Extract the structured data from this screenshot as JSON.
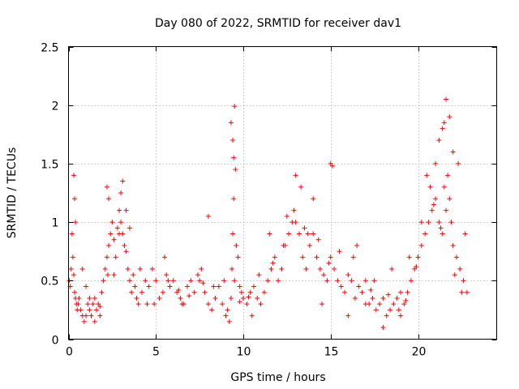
{
  "chart_data": {
    "type": "scatter",
    "title": "Day 080 of 2022, SRMTID for receiver dav1",
    "xlabel": "GPS time / hours",
    "ylabel": "SRMTID / TECUs",
    "xlim": [
      0,
      24.5
    ],
    "ylim": [
      0,
      2.5
    ],
    "xticks": [
      0,
      5,
      10,
      15,
      20
    ],
    "xtick_labels": [
      "0",
      "5",
      "10",
      "15",
      "20"
    ],
    "yticks": [
      0,
      0.5,
      1,
      1.5,
      2,
      2.5
    ],
    "ytick_labels": [
      "0",
      "0.5",
      "1",
      "1.5",
      "2",
      "2.5"
    ],
    "grid": true,
    "marker": "+",
    "colors": {
      "points": "#ff0000",
      "grid": "#a0a0a0",
      "axes": "#000000"
    },
    "series": [
      {
        "name": "SRMTID",
        "x": [
          0.05,
          0.1,
          0.15,
          0.2,
          0.25,
          0.3,
          0.35,
          0.4,
          0.45,
          0.5,
          0.55,
          0.6,
          0.7,
          0.8,
          0.9,
          1.0,
          1.1,
          1.2,
          1.3,
          1.4,
          1.5,
          1.6,
          1.7,
          1.8,
          1.9,
          2.0,
          2.1,
          2.2,
          2.25,
          2.3,
          2.4,
          2.5,
          2.6,
          2.7,
          2.8,
          2.9,
          3.0,
          3.1,
          3.2,
          3.3,
          3.4,
          3.5,
          3.6,
          3.7,
          3.8,
          3.9,
          4.0,
          4.2,
          4.4,
          4.6,
          4.8,
          5.0,
          5.2,
          5.4,
          5.6,
          5.8,
          6.0,
          6.2,
          6.4,
          6.6,
          6.8,
          7.0,
          7.2,
          7.4,
          7.6,
          7.8,
          8.0,
          8.2,
          8.4,
          8.6,
          8.8,
          9.0,
          9.1,
          9.2,
          9.3,
          9.35,
          9.4,
          9.45,
          9.5,
          9.6,
          9.7,
          9.8,
          9.9,
          10.0,
          10.2,
          10.4,
          10.6,
          10.8,
          11.0,
          11.2,
          11.4,
          11.6,
          11.8,
          12.0,
          12.2,
          12.4,
          12.6,
          12.8,
          12.9,
          13.0,
          13.2,
          13.4,
          13.6,
          13.8,
          14.0,
          14.2,
          14.4,
          14.6,
          14.8,
          14.9,
          15.0,
          15.2,
          15.4,
          15.6,
          15.8,
          16.0,
          16.2,
          16.4,
          16.6,
          16.8,
          17.0,
          17.2,
          17.4,
          17.6,
          17.8,
          18.0,
          18.2,
          18.4,
          18.6,
          18.8,
          19.0,
          19.2,
          19.4,
          19.6,
          19.8,
          20.0,
          20.2,
          20.4,
          20.6,
          20.8,
          21.0,
          21.2,
          21.4,
          21.5,
          21.6,
          21.7,
          21.8,
          21.9,
          22.0,
          22.2,
          22.4,
          22.6,
          22.8,
          0.3,
          0.35,
          0.4,
          1.0,
          1.5,
          2.2,
          2.3,
          2.9,
          3.0,
          3.1,
          3.3,
          4.5,
          5.5,
          6.5,
          7.5,
          8.0,
          9.3,
          9.4,
          9.45,
          9.5,
          9.55,
          10.5,
          11.5,
          12.5,
          13.0,
          13.3,
          13.7,
          14.0,
          14.5,
          15.0,
          15.1,
          16.0,
          16.5,
          17.0,
          17.5,
          18.0,
          18.5,
          19.0,
          19.5,
          20.2,
          20.5,
          20.7,
          21.0,
          21.2,
          21.4,
          21.5,
          21.6,
          21.8,
          22.0,
          22.3,
          22.5,
          0.8,
          1.2,
          1.8,
          2.6,
          3.5,
          4.1,
          4.9,
          5.7,
          6.3,
          6.9,
          7.7,
          8.3,
          8.9,
          9.8,
          10.3,
          10.9,
          11.7,
          12.3,
          13.5,
          14.3,
          15.5,
          16.3,
          17.3,
          18.3,
          18.9,
          19.3,
          19.9,
          20.9,
          21.3,
          22.1,
          22.7
        ],
        "y": [
          0.5,
          0.45,
          0.6,
          0.9,
          0.7,
          0.55,
          0.4,
          0.35,
          0.3,
          0.25,
          0.3,
          0.35,
          0.25,
          0.2,
          0.15,
          0.2,
          0.3,
          0.25,
          0.2,
          0.3,
          0.35,
          0.25,
          0.3,
          0.2,
          0.4,
          0.5,
          0.6,
          0.7,
          0.55,
          0.8,
          0.9,
          1.0,
          0.85,
          0.7,
          0.95,
          1.1,
          1.0,
          0.9,
          0.8,
          0.75,
          0.6,
          0.5,
          0.4,
          0.55,
          0.45,
          0.35,
          0.3,
          0.4,
          0.5,
          0.45,
          0.6,
          0.5,
          0.35,
          0.4,
          0.55,
          0.45,
          0.5,
          0.4,
          0.35,
          0.3,
          0.45,
          0.5,
          0.4,
          0.55,
          0.6,
          0.4,
          0.3,
          0.25,
          0.35,
          0.45,
          0.3,
          0.2,
          0.25,
          0.15,
          0.35,
          0.6,
          0.9,
          1.2,
          0.5,
          0.8,
          0.7,
          0.45,
          0.4,
          0.35,
          0.3,
          0.4,
          0.45,
          0.35,
          0.3,
          0.4,
          0.5,
          0.6,
          0.7,
          0.5,
          0.6,
          0.8,
          0.9,
          1.0,
          1.1,
          1.0,
          0.9,
          0.7,
          0.6,
          0.8,
          0.9,
          0.7,
          0.6,
          0.55,
          0.5,
          0.65,
          0.7,
          0.6,
          0.5,
          0.45,
          0.4,
          0.55,
          0.5,
          0.35,
          0.45,
          0.4,
          0.5,
          0.3,
          0.35,
          0.25,
          0.3,
          0.35,
          0.2,
          0.25,
          0.3,
          0.35,
          0.2,
          0.3,
          0.4,
          0.5,
          0.6,
          0.7,
          0.8,
          0.9,
          1.0,
          1.1,
          1.2,
          1.0,
          0.9,
          1.3,
          1.1,
          1.4,
          1.2,
          1.0,
          0.8,
          0.7,
          0.6,
          0.5,
          0.4,
          1.4,
          1.2,
          1.0,
          0.45,
          0.15,
          1.3,
          1.2,
          0.9,
          1.25,
          1.35,
          1.1,
          0.3,
          0.7,
          0.3,
          0.5,
          1.05,
          1.85,
          1.7,
          1.55,
          1.99,
          1.45,
          0.2,
          0.9,
          1.05,
          1.4,
          1.3,
          0.9,
          1.2,
          0.3,
          1.5,
          1.48,
          0.2,
          0.8,
          0.3,
          0.5,
          0.1,
          0.6,
          0.4,
          0.7,
          1.0,
          1.4,
          1.3,
          1.5,
          1.7,
          1.8,
          1.85,
          2.05,
          1.9,
          1.6,
          1.5,
          0.4,
          0.6,
          0.35,
          0.28,
          0.55,
          0.95,
          0.6,
          0.3,
          0.5,
          0.42,
          0.37,
          0.48,
          0.45,
          0.5,
          0.32,
          0.36,
          0.55,
          0.65,
          0.8,
          0.95,
          0.85,
          0.75,
          0.7,
          0.42,
          0.38,
          0.25,
          0.33,
          0.62,
          1.15,
          0.95,
          0.55,
          0.9
        ]
      }
    ]
  }
}
